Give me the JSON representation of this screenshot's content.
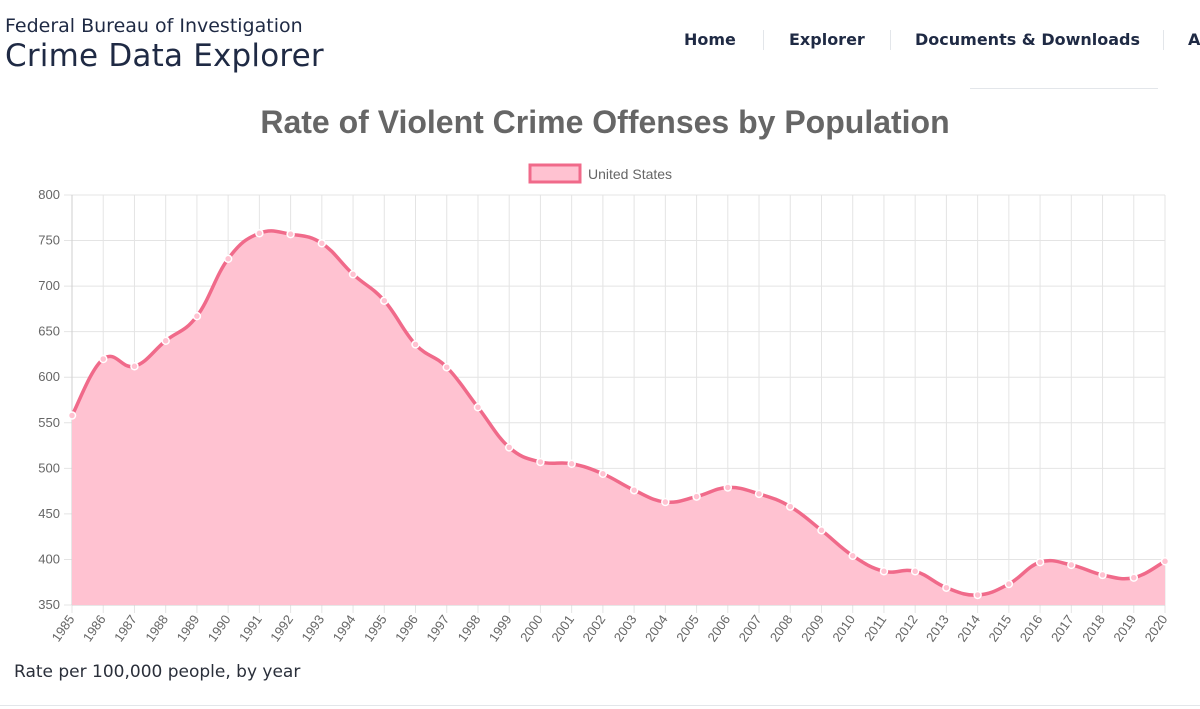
{
  "header": {
    "org": "Federal Bureau of Investigation",
    "app_title": "Crime Data Explorer"
  },
  "nav": {
    "items": [
      "Home",
      "Explorer",
      "Documents & Downloads",
      "A"
    ]
  },
  "caption": "Rate per 100,000 people, by year",
  "colors": {
    "line": "#f06a8a",
    "fill": "#ffc2d1",
    "grid": "#e4e4e4",
    "text": "#666666"
  },
  "chart_data": {
    "type": "area",
    "title": "Rate of Violent Crime Offenses by Population",
    "xlabel": "",
    "ylabel": "",
    "ylim": [
      350,
      800
    ],
    "yticks": [
      350,
      400,
      450,
      500,
      550,
      600,
      650,
      700,
      750,
      800
    ],
    "legend_position": "top",
    "grid": true,
    "categories": [
      "1985",
      "1986",
      "1987",
      "1988",
      "1989",
      "1990",
      "1991",
      "1992",
      "1993",
      "1994",
      "1995",
      "1996",
      "1997",
      "1998",
      "1999",
      "2000",
      "2001",
      "2002",
      "2003",
      "2004",
      "2005",
      "2006",
      "2007",
      "2008",
      "2009",
      "2010",
      "2011",
      "2012",
      "2013",
      "2014",
      "2015",
      "2016",
      "2017",
      "2018",
      "2019",
      "2020"
    ],
    "series": [
      {
        "name": "United States",
        "values": [
          558,
          620,
          612,
          640,
          667,
          730,
          758,
          757,
          747,
          713,
          684,
          636,
          611,
          567,
          523,
          507,
          505,
          494,
          476,
          463,
          469,
          479,
          472,
          458,
          432,
          404,
          387,
          387,
          369,
          361,
          373,
          397,
          394,
          383,
          380,
          398
        ]
      }
    ]
  }
}
